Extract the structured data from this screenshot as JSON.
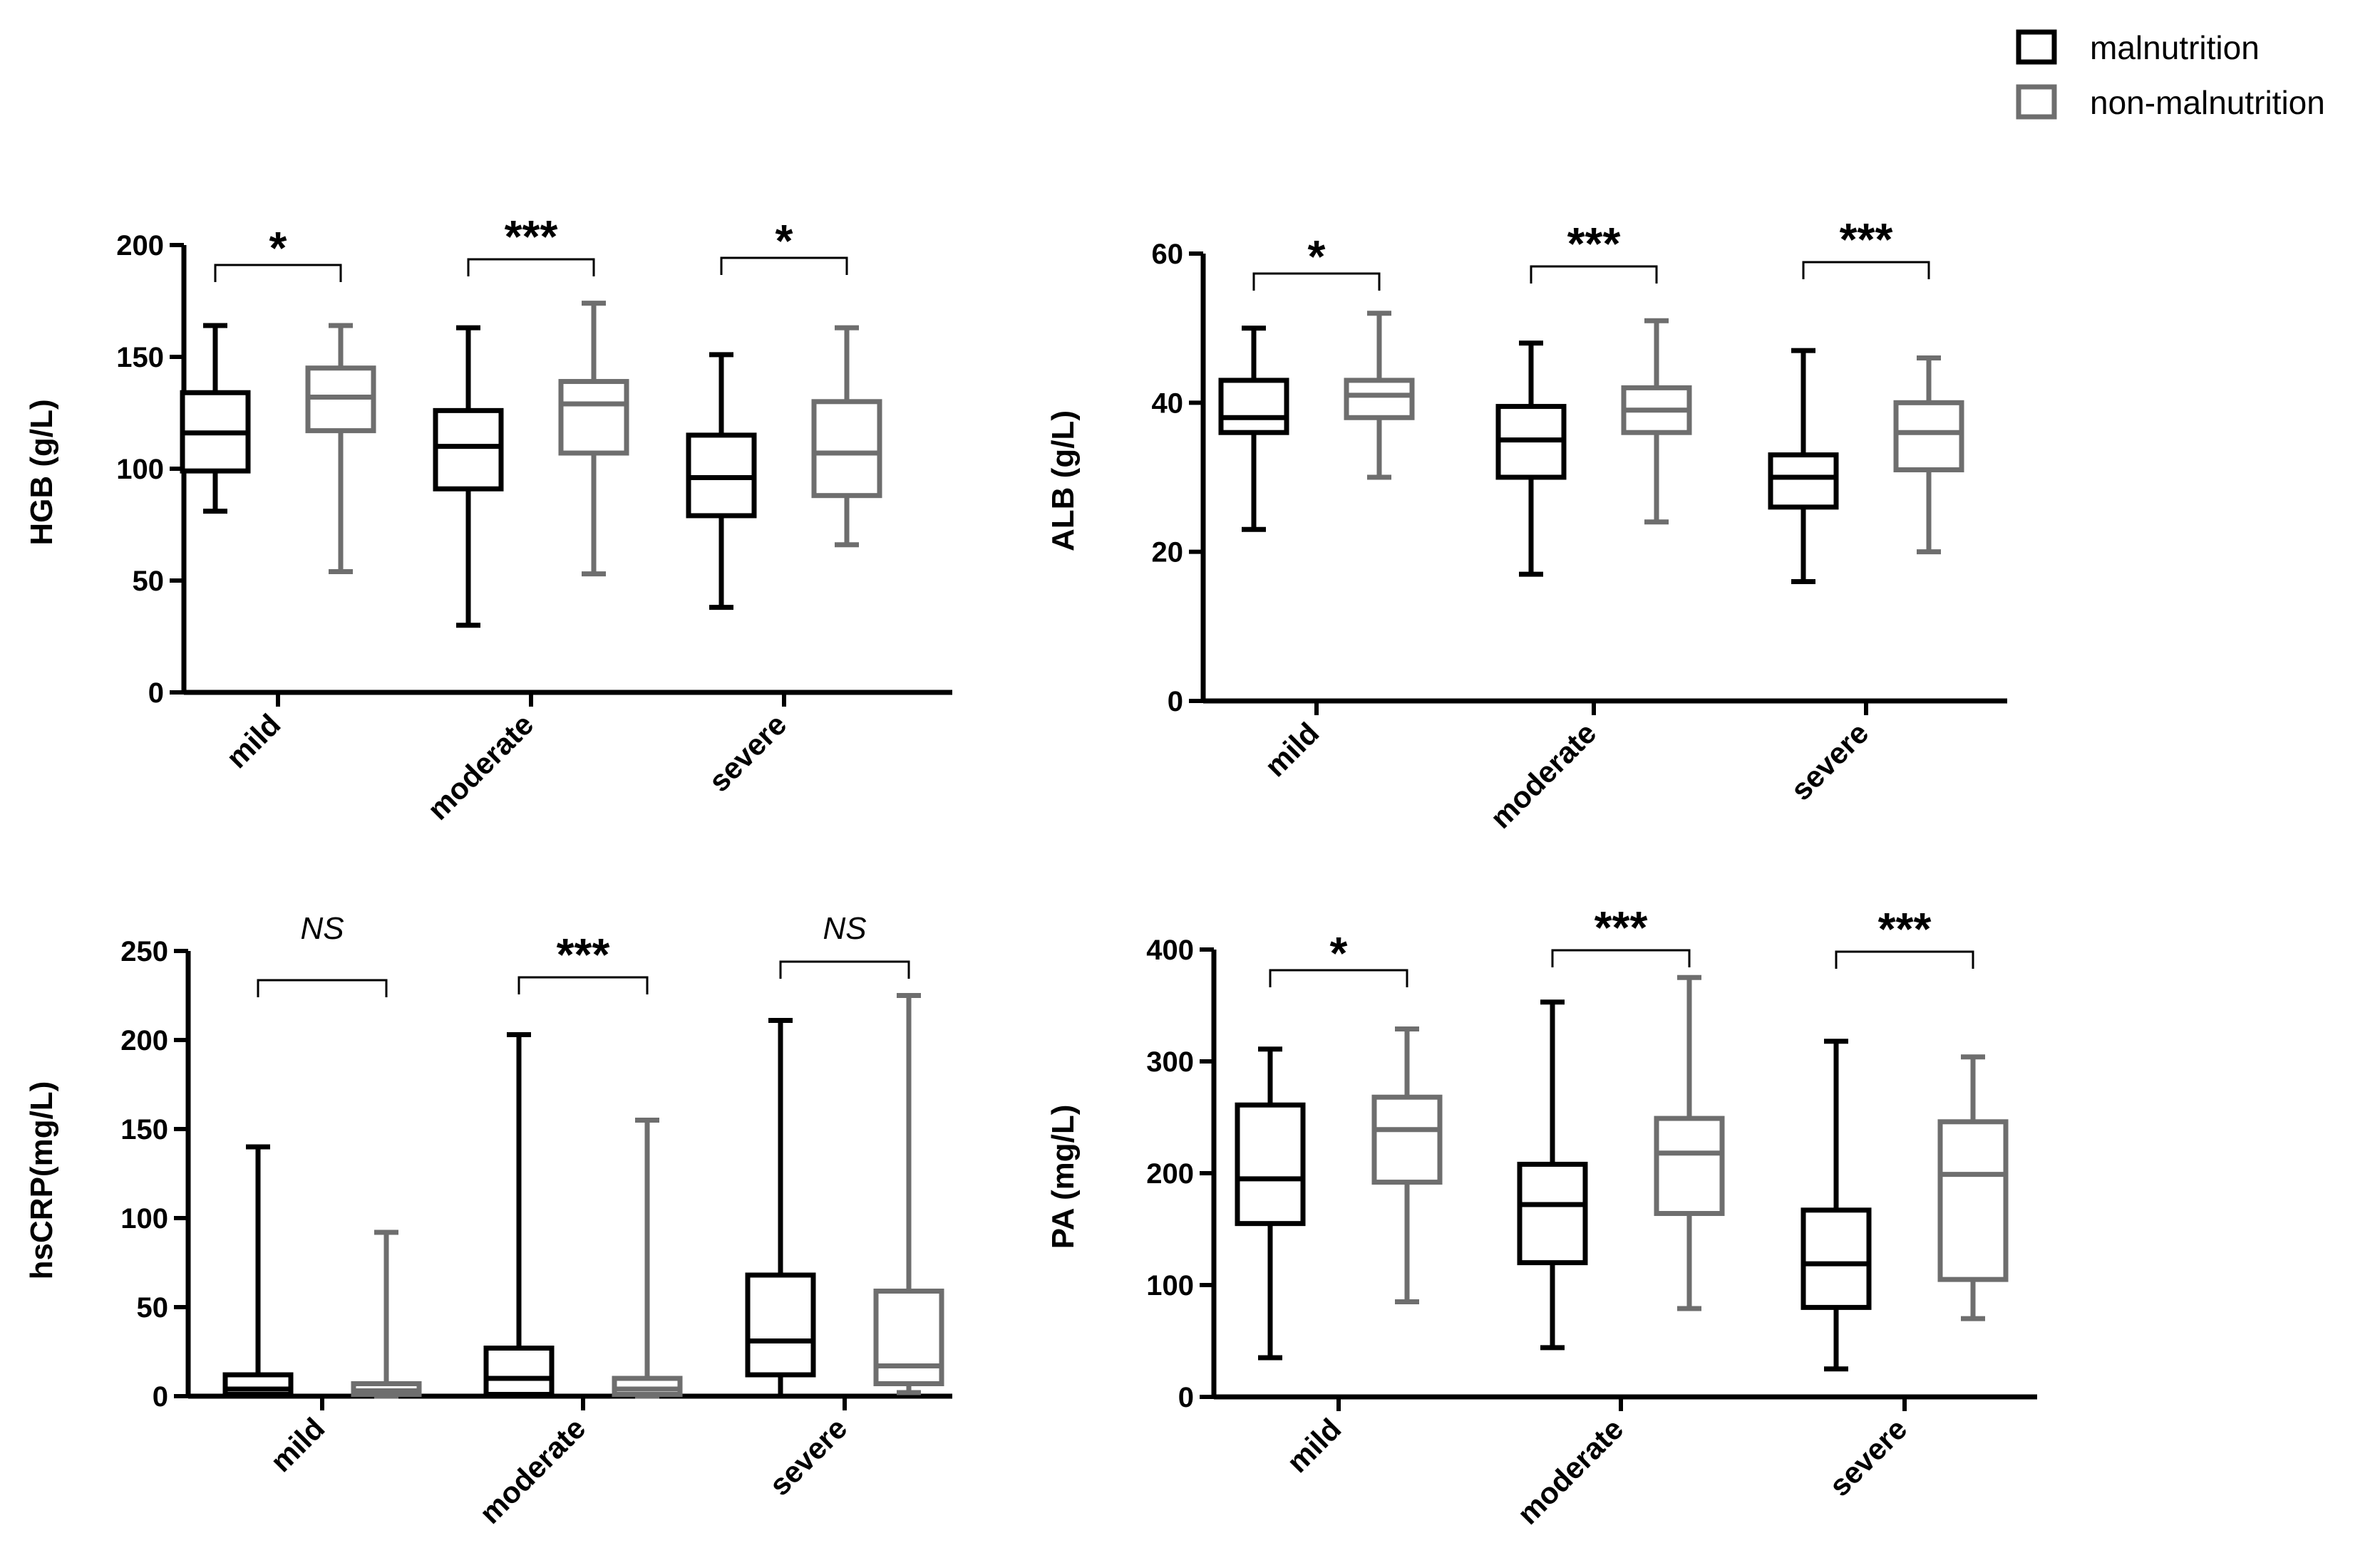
{
  "colors": {
    "malnutrition": "#000000",
    "non_malnutrition": "#6e6e6e"
  },
  "legend": {
    "items": [
      {
        "label": "malnutrition",
        "color": "#000000"
      },
      {
        "label": "non-malnutrition",
        "color": "#6e6e6e"
      }
    ],
    "placement": "top-right"
  },
  "chart_data": [
    {
      "type": "box",
      "ylabel": "HGB (g/L)",
      "ylim": [
        0,
        200
      ],
      "yticks": [
        0,
        50,
        100,
        150,
        200
      ],
      "categories": [
        "mild",
        "moderate",
        "severe"
      ],
      "significance": [
        "*",
        "***",
        "*"
      ],
      "series": [
        {
          "name": "malnutrition",
          "boxes": [
            {
              "min": 81,
              "q1": 99,
              "median": 116,
              "q3": 134,
              "max": 164
            },
            {
              "min": 30,
              "q1": 91,
              "median": 110,
              "q3": 126,
              "max": 163
            },
            {
              "min": 38,
              "q1": 79,
              "median": 96,
              "q3": 115,
              "max": 151
            }
          ]
        },
        {
          "name": "non-malnutrition",
          "boxes": [
            {
              "min": 54,
              "q1": 117,
              "median": 132,
              "q3": 145,
              "max": 164
            },
            {
              "min": 53,
              "q1": 107,
              "median": 129,
              "q3": 139,
              "max": 174
            },
            {
              "min": 66,
              "q1": 88,
              "median": 107,
              "q3": 130,
              "max": 163
            }
          ]
        }
      ]
    },
    {
      "type": "box",
      "ylabel": "ALB (g/L)",
      "ylim": [
        0,
        60
      ],
      "yticks": [
        0,
        20,
        40,
        60
      ],
      "categories": [
        "mild",
        "moderate",
        "severe"
      ],
      "significance": [
        "*",
        "***",
        "***"
      ],
      "series": [
        {
          "name": "malnutrition",
          "boxes": [
            {
              "min": 23,
              "q1": 36,
              "median": 38,
              "q3": 43,
              "max": 50
            },
            {
              "min": 17,
              "q1": 30,
              "median": 35,
              "q3": 39.5,
              "max": 48
            },
            {
              "min": 16,
              "q1": 26,
              "median": 30,
              "q3": 33,
              "max": 47
            }
          ]
        },
        {
          "name": "non-malnutrition",
          "boxes": [
            {
              "min": 30,
              "q1": 38,
              "median": 41,
              "q3": 43,
              "max": 52
            },
            {
              "min": 24,
              "q1": 36,
              "median": 39,
              "q3": 42,
              "max": 51
            },
            {
              "min": 20,
              "q1": 31,
              "median": 36,
              "q3": 40,
              "max": 46
            }
          ]
        }
      ]
    },
    {
      "type": "box",
      "ylabel": "hsCRP(mg/L)",
      "ylim": [
        0,
        250
      ],
      "yticks": [
        0,
        50,
        100,
        150,
        200,
        250
      ],
      "categories": [
        "mild",
        "moderate",
        "severe"
      ],
      "significance": [
        "NS",
        "***",
        "NS"
      ],
      "series": [
        {
          "name": "malnutrition",
          "boxes": [
            {
              "min": 0,
              "q1": 1,
              "median": 4,
              "q3": 12,
              "max": 140
            },
            {
              "min": 0,
              "q1": 1,
              "median": 10,
              "q3": 27,
              "max": 203
            },
            {
              "min": 0,
              "q1": 12,
              "median": 31,
              "q3": 68,
              "max": 211
            }
          ]
        },
        {
          "name": "non-malnutrition",
          "boxes": [
            {
              "min": 0,
              "q1": 1,
              "median": 3,
              "q3": 7,
              "max": 92
            },
            {
              "min": 0,
              "q1": 1,
              "median": 4,
              "q3": 10,
              "max": 155
            },
            {
              "min": 2,
              "q1": 7,
              "median": 17,
              "q3": 59,
              "max": 225
            }
          ]
        }
      ]
    },
    {
      "type": "box",
      "ylabel": "PA (mg/L)",
      "ylim": [
        0,
        400
      ],
      "yticks": [
        0,
        100,
        200,
        300,
        400
      ],
      "categories": [
        "mild",
        "moderate",
        "severe"
      ],
      "significance": [
        "*",
        "***",
        "***"
      ],
      "series": [
        {
          "name": "malnutrition",
          "boxes": [
            {
              "min": 35,
              "q1": 155,
              "median": 195,
              "q3": 261,
              "max": 311
            },
            {
              "min": 44,
              "q1": 120,
              "median": 172,
              "q3": 208,
              "max": 353
            },
            {
              "min": 25,
              "q1": 80,
              "median": 119,
              "q3": 167,
              "max": 318
            }
          ]
        },
        {
          "name": "non-malnutrition",
          "boxes": [
            {
              "min": 85,
              "q1": 192,
              "median": 239,
              "q3": 268,
              "max": 329
            },
            {
              "min": 79,
              "q1": 164,
              "median": 218,
              "q3": 249,
              "max": 375
            },
            {
              "min": 70,
              "q1": 105,
              "median": 199,
              "q3": 246,
              "max": 304
            }
          ]
        }
      ]
    }
  ]
}
